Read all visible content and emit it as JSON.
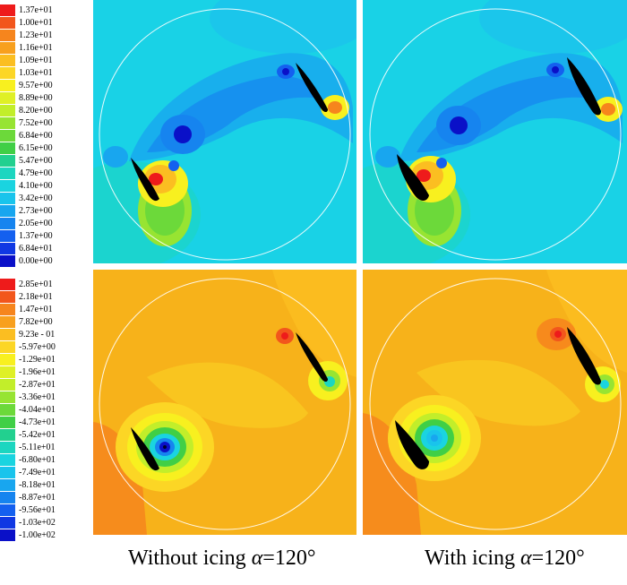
{
  "velocity_legend": {
    "labels": [
      "1.37e+01",
      "1.00e+01",
      "1.23e+01",
      "1.16e+01",
      "1.09e+01",
      "1.03e+01",
      "9.57e+00",
      "8.89e+00",
      "8.20e+00",
      "7.52e+00",
      "6.84e+00",
      "6.15e+00",
      "5.47e+00",
      "4.79e+00",
      "4.10e+00",
      "3.42e+00",
      "2.73e+00",
      "2.05e+00",
      "1.37e+00",
      "6.84e+01",
      "0.00e+00"
    ],
    "colors": [
      "#ee1b1b",
      "#f2561c",
      "#f6851d",
      "#f8a01e",
      "#fbbe21",
      "#fcd625",
      "#f8f01f",
      "#dff026",
      "#c2ee2a",
      "#97e432",
      "#6cd93a",
      "#40cf46",
      "#22d08f",
      "#1cd6c0",
      "#1ad4e0",
      "#19c4ec",
      "#18a6ef",
      "#1684ef",
      "#1460ef",
      "#1038e3",
      "#0a10c8"
    ]
  },
  "pressure_legend": {
    "labels": [
      "2.85e+01",
      "2.18e+01",
      "1.47e+01",
      "7.82e+00",
      "9.23e - 01",
      "-5.97e+00",
      "-1.29e+01",
      "-1.96e+01",
      "-2.87e+01",
      "-3.36e+01",
      "-4.04e+01",
      "-4.73e+01",
      "-5.42e+01",
      "-5.11e+01",
      "-6.80e+01",
      "-7.49e+01",
      "-8.18e+01",
      "-8.87e+01",
      "-9.56e+01",
      "-1.03e+02",
      "-1.00e+02"
    ],
    "colors": [
      "#ee1b1b",
      "#f2561c",
      "#f6851d",
      "#f8a01e",
      "#fbbe21",
      "#fcd625",
      "#f8f01f",
      "#dff026",
      "#c2ee2a",
      "#97e432",
      "#6cd93a",
      "#40cf46",
      "#22d08f",
      "#1cd6c0",
      "#1ad4e0",
      "#19c4ec",
      "#18a6ef",
      "#1684ef",
      "#1460ef",
      "#1038e3",
      "#0a10c8"
    ]
  },
  "colors": {
    "velocity_background": "#19d2e6",
    "pressure_background": "#f7b21a",
    "blade": "#000000",
    "rotor_circle": "#ffffff"
  },
  "captions": {
    "left_prefix": "Without icing ",
    "right_prefix": "With icing ",
    "alpha_symbol": "α",
    "angle": "=120°"
  }
}
